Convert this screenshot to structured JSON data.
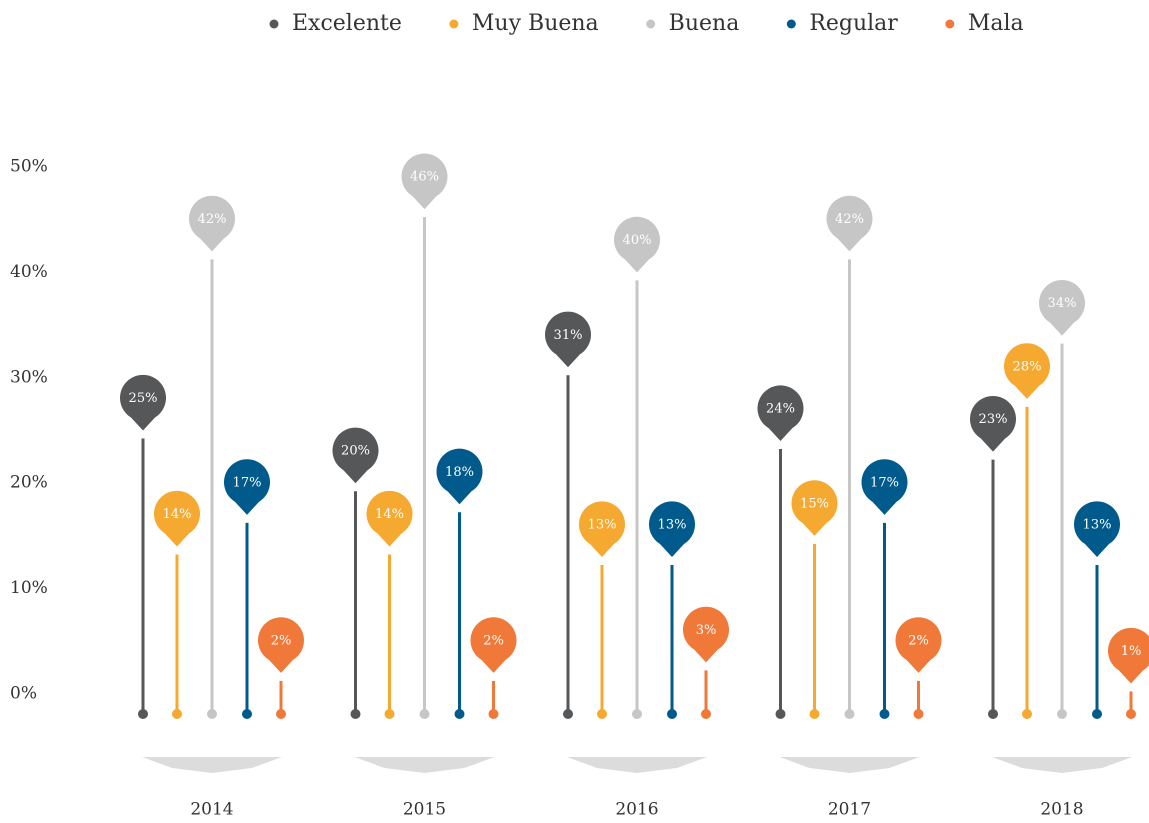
{
  "chart_data": {
    "type": "lollipop",
    "categories": [
      "2014",
      "2015",
      "2016",
      "2017",
      "2018"
    ],
    "series": [
      {
        "name": "Excelente",
        "color": "#555759",
        "values": [
          25,
          20,
          31,
          24,
          23
        ],
        "value_labels": [
          "25%",
          "20%",
          "31%",
          "24%",
          "23%"
        ]
      },
      {
        "name": "Muy Buena",
        "color": "#f5a930",
        "values": [
          14,
          14,
          13,
          15,
          28
        ],
        "value_labels": [
          "14%",
          "14%",
          "13%",
          "15%",
          "28%"
        ]
      },
      {
        "name": "Buena",
        "color": "#c6c6c6",
        "values": [
          42,
          46,
          40,
          42,
          34
        ],
        "value_labels": [
          "42%",
          "46%",
          "40%",
          "42%",
          "34%"
        ]
      },
      {
        "name": "Regular",
        "color": "#005a8c",
        "values": [
          17,
          18,
          13,
          17,
          13
        ],
        "value_labels": [
          "17%",
          "18%",
          "13%",
          "17%",
          "13%"
        ]
      },
      {
        "name": "Mala",
        "color": "#f0793a",
        "values": [
          2,
          2,
          3,
          2,
          1
        ],
        "value_labels": [
          "2%",
          "2%",
          "3%",
          "2%",
          "1%"
        ]
      }
    ],
    "ylim": [
      0,
      50
    ],
    "yticks": [
      {
        "value": 0,
        "label": "0%"
      },
      {
        "value": 10,
        "label": "10%"
      },
      {
        "value": 20,
        "label": "20%"
      },
      {
        "value": 30,
        "label": "30%"
      },
      {
        "value": 40,
        "label": "40%"
      },
      {
        "value": 50,
        "label": "50%"
      }
    ],
    "legend": "top"
  }
}
